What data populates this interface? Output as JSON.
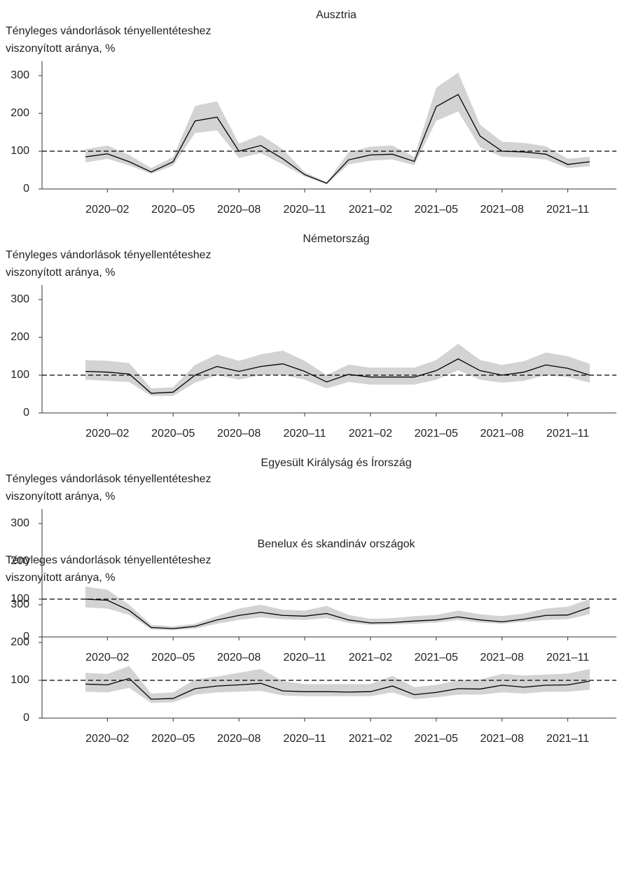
{
  "chart_data": [
    {
      "type": "line",
      "title": "Ausztria",
      "ylabel": [
        "Tényleges vándorlások tényellentéteshez",
        "viszonyított aránya, %"
      ],
      "categories": [
        null,
        "2020–02",
        null,
        null,
        "2020–05",
        null,
        null,
        "2020–08",
        null,
        null,
        "2020–11",
        null,
        null,
        "2021–02",
        null,
        null,
        "2021–05",
        null,
        null,
        "2021–08",
        null,
        null,
        "2021–11",
        null
      ],
      "ylim": [
        0,
        320
      ],
      "yticks": [
        0,
        100,
        200,
        300
      ],
      "reference_line": 100,
      "series": [
        {
          "color": "#000000",
          "band_color": "#d3d3d3",
          "values": [
            85,
            93,
            72,
            45,
            72,
            180,
            190,
            100,
            115,
            80,
            38,
            15,
            77,
            90,
            92,
            73,
            218,
            250,
            140,
            100,
            98,
            92,
            65,
            72
          ],
          "upper": [
            105,
            115,
            90,
            55,
            85,
            220,
            232,
            120,
            143,
            105,
            45,
            18,
            97,
            112,
            115,
            85,
            268,
            308,
            170,
            125,
            122,
            113,
            80,
            85
          ],
          "lower": [
            70,
            80,
            62,
            40,
            62,
            148,
            155,
            82,
            95,
            65,
            33,
            13,
            65,
            75,
            78,
            63,
            180,
            205,
            110,
            85,
            83,
            78,
            55,
            60
          ]
        }
      ]
    },
    {
      "type": "line",
      "title": "Németország",
      "ylabel": [
        "Tényleges vándorlások tényellentéteshez",
        "viszonyított aránya, %"
      ],
      "categories": [
        null,
        "2020–02",
        null,
        null,
        "2020–05",
        null,
        null,
        "2020–08",
        null,
        null,
        "2020–11",
        null,
        null,
        "2021–02",
        null,
        null,
        "2021–05",
        null,
        null,
        "2021–08",
        null,
        null,
        "2021–11",
        null
      ],
      "ylim": [
        0,
        320
      ],
      "yticks": [
        0,
        100,
        200,
        300
      ],
      "reference_line": 100,
      "series": [
        {
          "color": "#000000",
          "band_color": "#d3d3d3",
          "values": [
            110,
            108,
            103,
            52,
            55,
            100,
            123,
            110,
            123,
            130,
            110,
            82,
            102,
            95,
            95,
            95,
            112,
            143,
            112,
            100,
            108,
            127,
            118,
            100
          ],
          "upper": [
            140,
            138,
            132,
            65,
            68,
            127,
            155,
            138,
            155,
            165,
            138,
            100,
            128,
            120,
            120,
            120,
            140,
            183,
            140,
            127,
            137,
            160,
            150,
            130
          ],
          "lower": [
            88,
            85,
            82,
            45,
            45,
            80,
            100,
            88,
            100,
            100,
            88,
            65,
            82,
            75,
            75,
            75,
            88,
            113,
            88,
            80,
            85,
            100,
            95,
            80
          ]
        }
      ]
    },
    {
      "type": "line",
      "title": "Egyesült Királyság és Írország",
      "ylabel": [
        "Tényleges vándorlások tényellentéteshez",
        "viszonyított aránya, %"
      ],
      "categories": [
        null,
        "2020–02",
        null,
        null,
        "2020–05",
        null,
        null,
        "2020–08",
        null,
        null,
        "2020–11",
        null,
        null,
        "2021–02",
        null,
        null,
        "2021–05",
        null,
        null,
        "2021–08",
        null,
        null,
        "2021–11",
        null
      ],
      "ylim": [
        0,
        320
      ],
      "yticks": [
        0,
        100,
        200,
        300
      ],
      "reference_line": 100,
      "series": [
        {
          "color": "#000000",
          "band_color": "#d3d3d3",
          "values": [
            100,
            97,
            70,
            25,
            22,
            28,
            45,
            57,
            65,
            57,
            55,
            62,
            45,
            37,
            38,
            42,
            45,
            53,
            45,
            40,
            47,
            57,
            58,
            78
          ],
          "upper": [
            133,
            125,
            85,
            32,
            28,
            35,
            55,
            75,
            85,
            72,
            70,
            82,
            58,
            48,
            50,
            55,
            58,
            70,
            60,
            55,
            62,
            75,
            80,
            100
          ],
          "lower": [
            78,
            75,
            58,
            20,
            18,
            22,
            35,
            45,
            52,
            47,
            45,
            50,
            37,
            32,
            33,
            35,
            38,
            45,
            38,
            35,
            40,
            45,
            47,
            60
          ]
        }
      ]
    },
    {
      "type": "line",
      "title": "Benelux és skandináv országok",
      "ylabel": [
        "Tényleges vándorlások tényellentéteshez",
        "viszonyított aránya, %"
      ],
      "categories": [
        null,
        "2020–02",
        null,
        null,
        "2020–05",
        null,
        null,
        "2020–08",
        null,
        null,
        "2020–11",
        null,
        null,
        "2021–02",
        null,
        null,
        "2021–05",
        null,
        null,
        "2021–08",
        null,
        null,
        "2021–11",
        null
      ],
      "ylim": [
        0,
        320
      ],
      "yticks": [
        0,
        100,
        200,
        300
      ],
      "reference_line": 100,
      "series": [
        {
          "color": "#000000",
          "band_color": "#d3d3d3",
          "values": [
            90,
            88,
            105,
            50,
            52,
            78,
            85,
            88,
            92,
            72,
            70,
            70,
            69,
            70,
            85,
            62,
            68,
            78,
            77,
            87,
            82,
            87,
            88,
            98
          ],
          "upper": [
            120,
            117,
            138,
            65,
            68,
            102,
            110,
            120,
            130,
            98,
            90,
            90,
            90,
            90,
            112,
            82,
            88,
            100,
            102,
            117,
            113,
            115,
            118,
            130
          ],
          "lower": [
            70,
            68,
            80,
            40,
            42,
            62,
            68,
            70,
            72,
            60,
            58,
            58,
            58,
            58,
            68,
            50,
            55,
            62,
            62,
            68,
            65,
            70,
            70,
            75
          ]
        }
      ]
    }
  ]
}
